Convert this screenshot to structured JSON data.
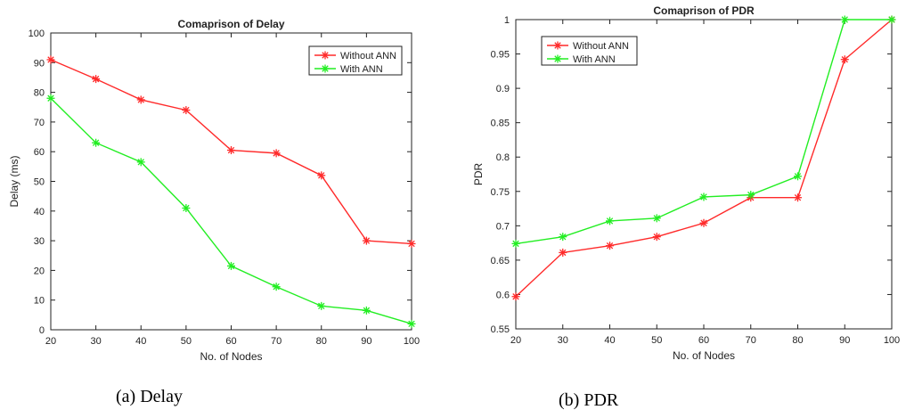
{
  "chart_data": [
    {
      "type": "line",
      "title": "Comaprison of Delay",
      "xlabel": "No. of Nodes",
      "ylabel": "Delay (ms)",
      "x": [
        20,
        30,
        40,
        50,
        60,
        70,
        80,
        90,
        100
      ],
      "xlim": [
        20,
        100
      ],
      "ylim": [
        0,
        100
      ],
      "xticks": [
        "20",
        "30",
        "40",
        "50",
        "60",
        "70",
        "80",
        "90",
        "100"
      ],
      "yticks": [
        "0",
        "10",
        "20",
        "30",
        "40",
        "50",
        "60",
        "70",
        "80",
        "90",
        "100"
      ],
      "grid": false,
      "legend": "top-right",
      "series": [
        {
          "name": "Without ANN",
          "color": "#ff2a2a",
          "values": [
            91,
            84.5,
            77.5,
            74,
            60.5,
            59.5,
            52,
            30,
            29
          ]
        },
        {
          "name": "With ANN",
          "color": "#22ee22",
          "values": [
            78,
            63,
            56.5,
            41,
            21.5,
            14.5,
            8,
            6.5,
            2
          ]
        }
      ],
      "caption": "(a) Delay"
    },
    {
      "type": "line",
      "title": "Comaprison of PDR",
      "xlabel": "No. of Nodes",
      "ylabel": "PDR",
      "x": [
        20,
        30,
        40,
        50,
        60,
        70,
        80,
        90,
        100
      ],
      "xlim": [
        20,
        100
      ],
      "ylim": [
        0.55,
        1
      ],
      "xticks": [
        "20",
        "30",
        "40",
        "50",
        "60",
        "70",
        "80",
        "90",
        "100"
      ],
      "yticks": [
        "0.55",
        "0.6",
        "0.65",
        "0.7",
        "0.75",
        "0.8",
        "0.85",
        "0.9",
        "0.95",
        "1"
      ],
      "grid": false,
      "legend": "top-left",
      "series": [
        {
          "name": "Without ANN",
          "color": "#ff2a2a",
          "values": [
            0.597,
            0.661,
            0.671,
            0.684,
            0.704,
            0.741,
            0.741,
            0.942,
            1.0
          ]
        },
        {
          "name": "With ANN",
          "color": "#22ee22",
          "values": [
            0.674,
            0.684,
            0.707,
            0.711,
            0.742,
            0.745,
            0.772,
            1.0,
            1.0
          ]
        }
      ],
      "caption": "(b) PDR"
    }
  ]
}
